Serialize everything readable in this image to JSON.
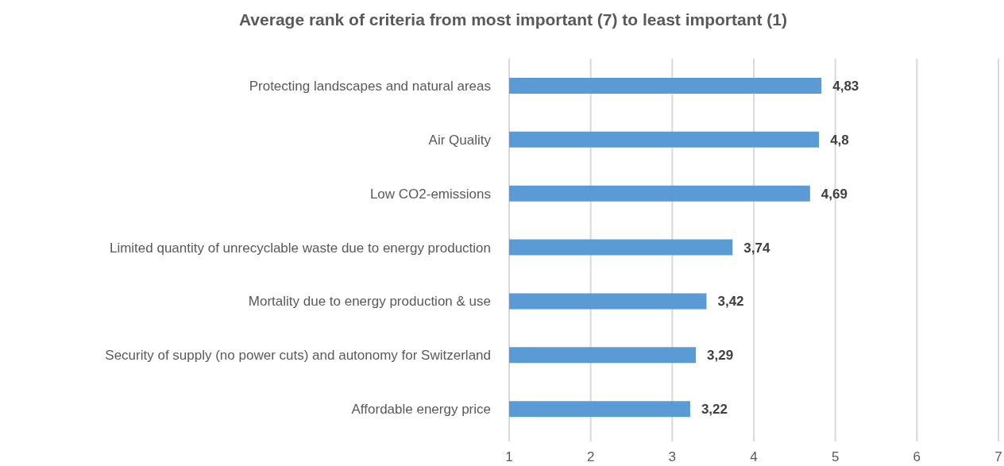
{
  "chart_data": {
    "type": "bar",
    "orientation": "horizontal",
    "title": "Average rank of criteria from most important (7) to least important (1)",
    "categories": [
      "Protecting landscapes and natural areas",
      "Air Quality",
      "Low CO2-emissions",
      "Limited quantity of unrecyclable waste due to energy production",
      "Mortality due to energy production & use",
      "Security of supply (no power cuts) and autonomy for Switzerland",
      "Affordable energy price"
    ],
    "values": [
      4.83,
      4.8,
      4.69,
      3.74,
      3.42,
      3.29,
      3.22
    ],
    "value_labels": [
      "4,83",
      "4,8",
      "4,69",
      "3,74",
      "3,42",
      "3,29",
      "3,22"
    ],
    "color": "#5b9bd5",
    "xlim": [
      1,
      7
    ],
    "xticks": [
      1,
      2,
      3,
      4,
      5,
      6,
      7
    ],
    "grid": "x"
  }
}
